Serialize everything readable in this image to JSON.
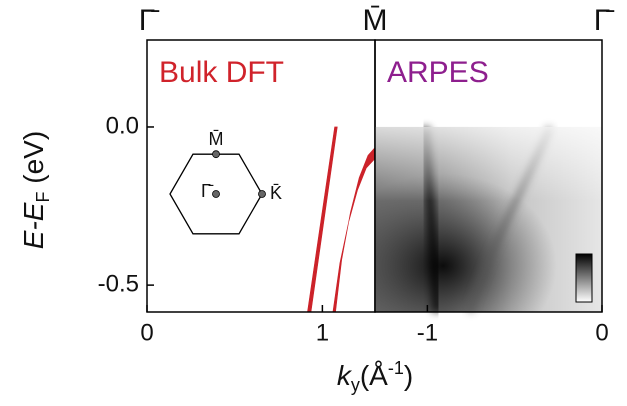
{
  "chart_data": [
    {
      "type": "band",
      "title": "Bulk DFT",
      "title_color": "#d0232b",
      "xlim": [
        0,
        1.3
      ],
      "xticks": [
        0,
        1
      ],
      "ylim": [
        -0.585,
        0.275
      ],
      "yticks": [
        {
          "value": 0,
          "label": "0.0"
        },
        -0.5
      ],
      "ylabel": {
        "main": "E-E",
        "sub": "F",
        "unit": " (eV)"
      },
      "sym_points": [
        {
          "value": 0,
          "label": "Γ̄"
        },
        {
          "value": 1.3,
          "label": "M̄"
        }
      ],
      "bz_labels": {
        "M": "M̄",
        "G": "Γ̄",
        "K": "K̄"
      },
      "series": [
        {
          "color": "#cc2229",
          "x": [
            0.915,
            0.935,
            1.085,
            1.07
          ],
          "y": [
            -0.585,
            -0.585,
            0,
            0
          ]
        },
        {
          "color": "#cc2229",
          "x": [
            1.075,
            1.11,
            1.16,
            1.21,
            1.26,
            1.3,
            1.3,
            1.25,
            1.2,
            1.15,
            1.1,
            1.06
          ],
          "y": [
            -0.585,
            -0.42,
            -0.27,
            -0.16,
            -0.09,
            -0.065,
            -0.1,
            -0.13,
            -0.2,
            -0.3,
            -0.43,
            -0.585
          ]
        }
      ]
    },
    {
      "type": "image",
      "title": "ARPES",
      "title_color": "#8e1f8e",
      "xlim": [
        -1.3,
        0
      ],
      "xticks": [
        -1,
        0
      ],
      "ylim": [
        -0.585,
        0.275
      ],
      "xlabel": {
        "main": "k",
        "sub": "y",
        "unit": "(Å",
        "sup": "-1",
        "end": ")"
      },
      "sym_points": [
        {
          "value": 0,
          "label": "Γ̄"
        }
      ]
    }
  ]
}
